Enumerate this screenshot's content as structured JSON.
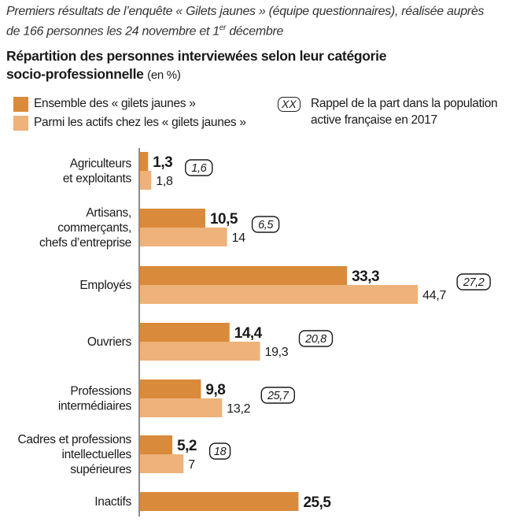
{
  "intro": {
    "line1": "Premiers résultats de l’enquête « Gilets jaunes » (équipe questionnaires), réalisée auprès",
    "line2_pre": "de 166 personnes les 24 novembre et 1",
    "line2_sup": "er",
    "line2_post": " décembre"
  },
  "title": {
    "line1": "Répartition des personnes interviewées selon leur catégorie",
    "line2": "socio-professionnelle",
    "unit": "(en %)"
  },
  "legend": {
    "series1": "Ensemble des « gilets jaunes »",
    "series2": "Parmi les actifs chez les « gilets jaunes »",
    "ref_symbol": "XX",
    "ref_line1": "Rappel de la part dans la population",
    "ref_line2": "active française en 2017"
  },
  "colors": {
    "series1": "#d98a3a",
    "series2": "#eeb27a",
    "text": "#1a1a1a"
  },
  "chart_data": {
    "type": "bar",
    "orientation": "horizontal",
    "categories": [
      [
        "Agriculteurs",
        "et exploitants"
      ],
      [
        "Artisans,",
        "commerçants,",
        "chefs d’entreprise"
      ],
      [
        "Employés"
      ],
      [
        "Ouvriers"
      ],
      [
        "Professions",
        "intermédiaires"
      ],
      [
        "Cadres et professions",
        "intellectuelles",
        "supérieures"
      ],
      [
        "Inactifs"
      ]
    ],
    "series": [
      {
        "name": "Ensemble des « gilets jaunes »",
        "values": [
          1.3,
          10.5,
          33.3,
          14.4,
          9.8,
          5.2,
          25.5
        ],
        "labels": [
          "1,3",
          "10,5",
          "33,3",
          "14,4",
          "9,8",
          "5,2",
          "25,5"
        ]
      },
      {
        "name": "Parmi les actifs chez les « gilets jaunes »",
        "values": [
          1.8,
          14,
          44.7,
          19.3,
          13.2,
          7,
          null
        ],
        "labels": [
          "1,8",
          "14",
          "44,7",
          "19,3",
          "13,2",
          "7",
          ""
        ]
      }
    ],
    "reference": {
      "name": "Rappel de la part dans la population active française en 2017",
      "values": [
        1.6,
        6.5,
        27.2,
        20.8,
        25.7,
        18,
        null
      ],
      "labels": [
        "1,6",
        "6,5",
        "27,2",
        "20,8",
        "25,7",
        "18",
        ""
      ]
    },
    "xlim": [
      0,
      45
    ]
  }
}
